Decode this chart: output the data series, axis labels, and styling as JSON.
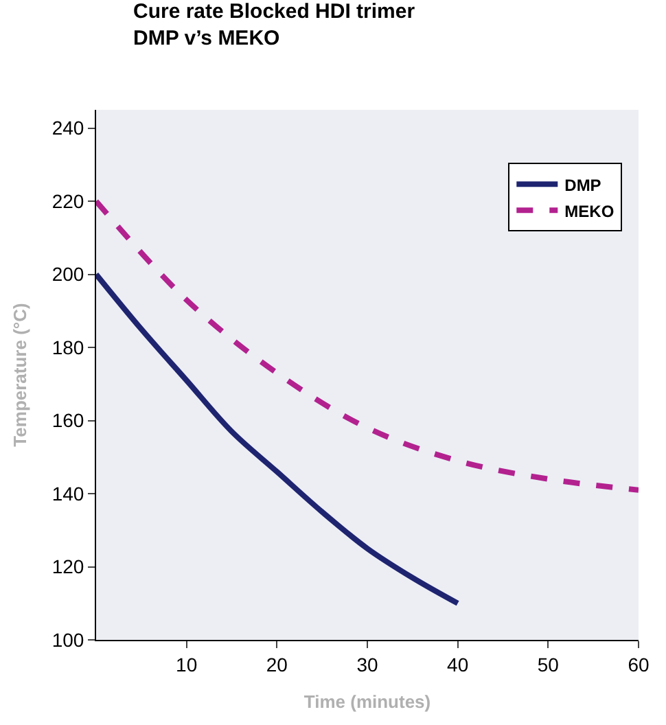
{
  "chart_data": {
    "type": "line",
    "title": "Cure rate Blocked HDI trimer\nDMP v’s MEKO",
    "xlabel": "Time (minutes)",
    "ylabel": "Temperature (°C)",
    "xlim": [
      0,
      60
    ],
    "xticks": [
      10,
      20,
      30,
      40,
      50,
      60
    ],
    "ylim": [
      100,
      245
    ],
    "yticks": [
      100,
      120,
      140,
      160,
      180,
      200,
      220,
      240
    ],
    "series": [
      {
        "name": "DMP",
        "color": "#1f2470",
        "line_style": "solid",
        "x": [
          0,
          5,
          10,
          15,
          20,
          25,
          30,
          35,
          40
        ],
        "values": [
          200,
          185,
          171,
          157,
          146,
          135,
          125,
          117,
          110
        ]
      },
      {
        "name": "MEKO",
        "color": "#b3218f",
        "line_style": "dashed",
        "x": [
          0,
          10,
          20,
          30,
          40,
          50,
          60
        ],
        "values": [
          220,
          193,
          173,
          158,
          149,
          144,
          141
        ]
      }
    ],
    "legend": "top right",
    "grid": false
  }
}
